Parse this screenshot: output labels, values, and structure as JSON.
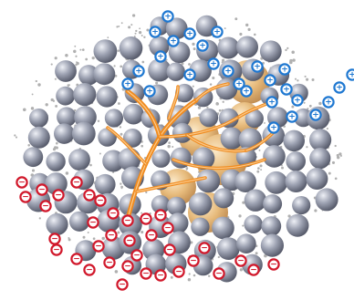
{
  "legend": {},
  "symbols": {
    "positive_ion": "+",
    "negative_ion": "−"
  },
  "colors": {
    "background": "#ffffff",
    "metal_atom": "#9ea3b3",
    "metal_atom_light": "#eef0f6",
    "metal_atom_dark": "#4d5161",
    "core_particle": "#e7bb7c",
    "core_particle_light": "#fbe8c7",
    "core_particle_dark": "#b9844a",
    "dendrite": "#f08b1f",
    "positive_ion": "#1f78d1",
    "negative_ion": "#d1182b",
    "small_dot": "#b0b0b0"
  },
  "icons": {
    "positive_ion": "plus-circle-icon",
    "negative_ion": "minus-circle-icon",
    "atom": "sphere-icon",
    "dendrite": "branch-icon"
  }
}
